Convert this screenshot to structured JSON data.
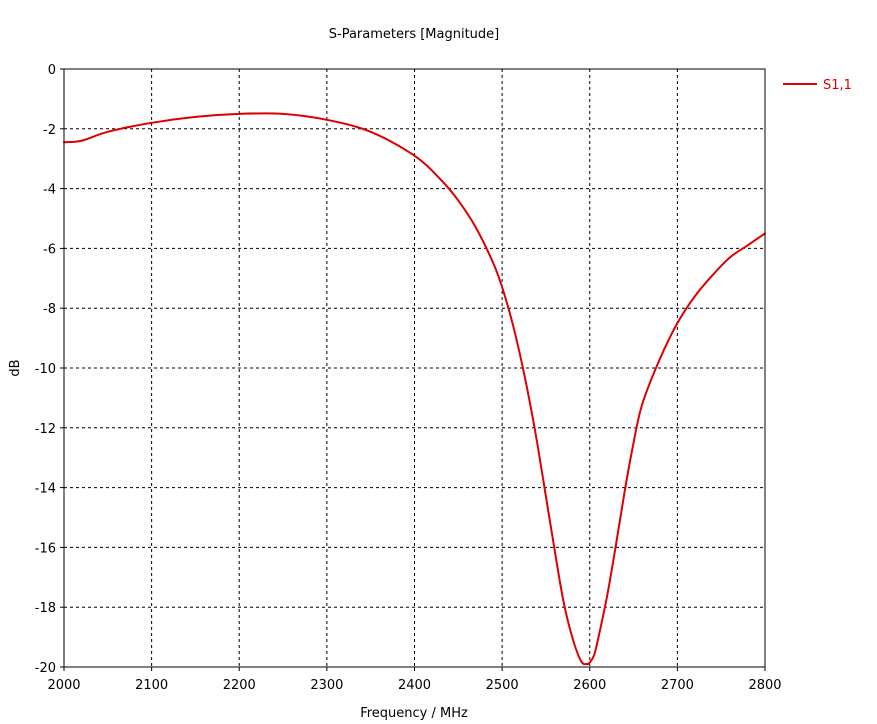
{
  "chart_data": {
    "type": "line",
    "title": "S-Parameters [Magnitude]",
    "xlabel": "Frequency / MHz",
    "ylabel": "dB",
    "xlim": [
      2000,
      2800
    ],
    "ylim": [
      -20,
      0
    ],
    "xticks": [
      2000,
      2100,
      2200,
      2300,
      2400,
      2500,
      2600,
      2700,
      2800
    ],
    "yticks": [
      0,
      -2,
      -4,
      -6,
      -8,
      -10,
      -12,
      -14,
      -16,
      -18,
      -20
    ],
    "grid": true,
    "legend_position": "top-right",
    "series": [
      {
        "name": "S1,1",
        "color": "#dd0000",
        "x": [
          2000,
          2020,
          2050,
          2100,
          2150,
          2200,
          2250,
          2300,
          2350,
          2400,
          2430,
          2450,
          2470,
          2490,
          2500,
          2510,
          2520,
          2530,
          2540,
          2550,
          2560,
          2570,
          2580,
          2590,
          2597,
          2600,
          2605,
          2610,
          2620,
          2630,
          2640,
          2650,
          2660,
          2680,
          2700,
          2720,
          2740,
          2760,
          2780,
          2800
        ],
        "y": [
          -2.45,
          -2.4,
          -2.1,
          -1.8,
          -1.6,
          -1.5,
          -1.5,
          -1.7,
          -2.1,
          -2.9,
          -3.7,
          -4.4,
          -5.3,
          -6.5,
          -7.3,
          -8.3,
          -9.5,
          -10.9,
          -12.5,
          -14.3,
          -16.1,
          -17.8,
          -19.0,
          -19.8,
          -19.9,
          -19.85,
          -19.6,
          -19.0,
          -17.6,
          -15.9,
          -14.1,
          -12.5,
          -11.2,
          -9.7,
          -8.5,
          -7.6,
          -6.9,
          -6.3,
          -5.9,
          -5.5
        ]
      }
    ]
  }
}
